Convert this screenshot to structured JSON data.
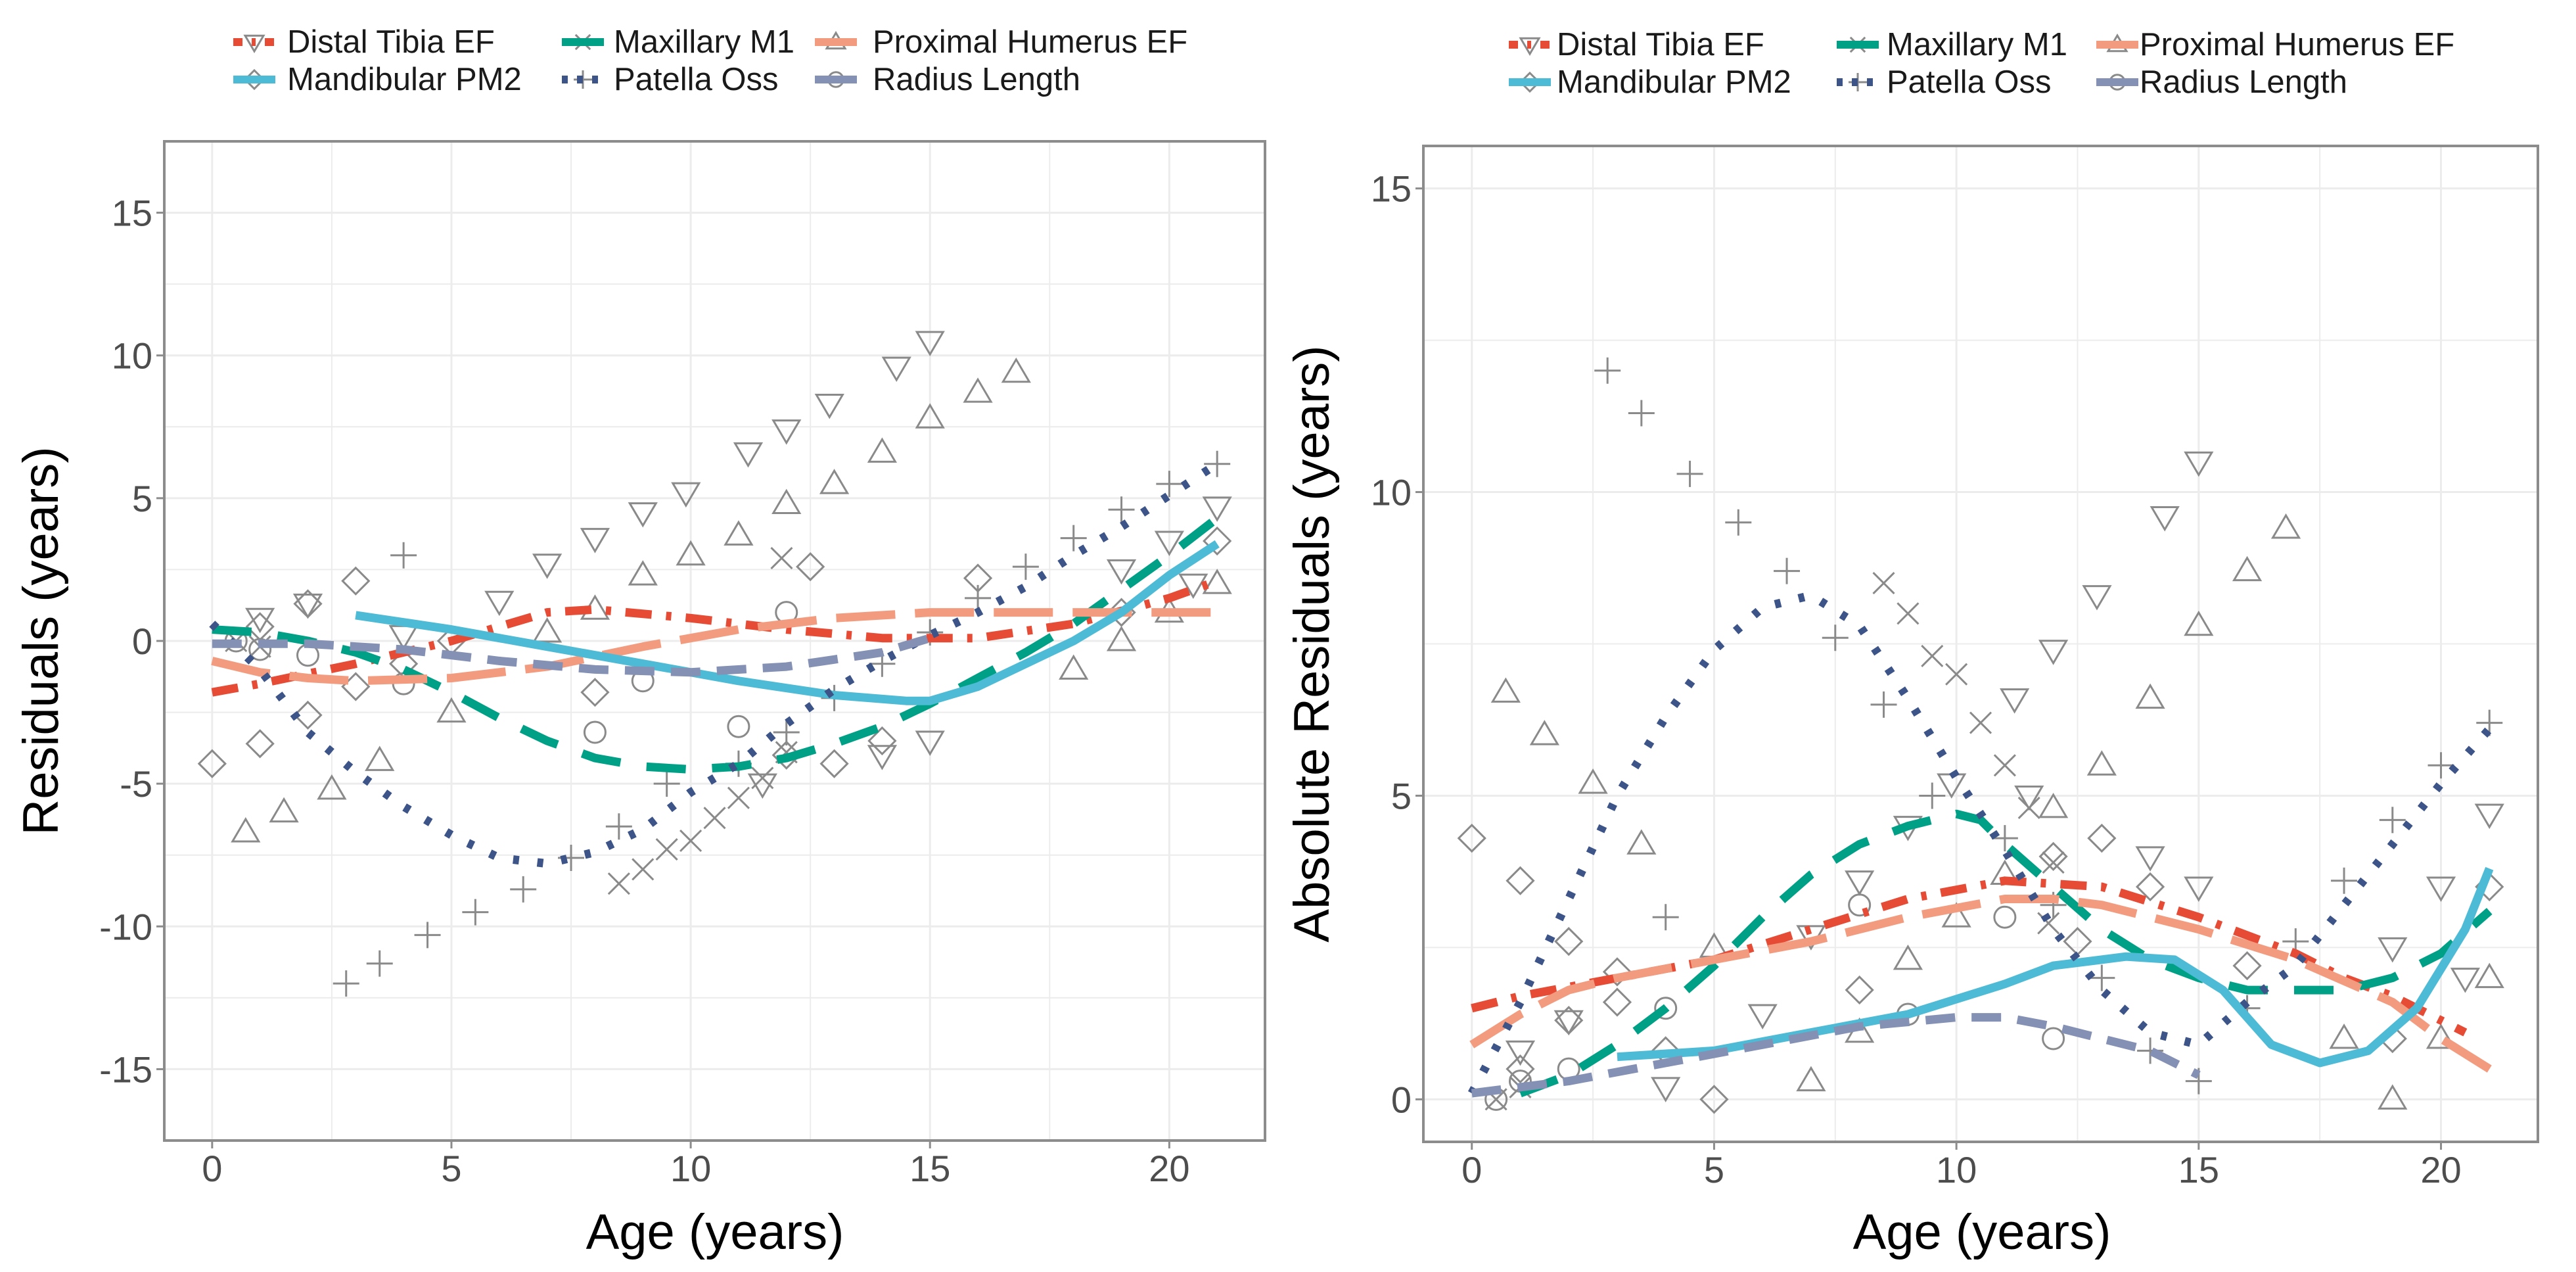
{
  "chart_data": [
    {
      "type": "line",
      "title": "",
      "xlabel": "Age (years)",
      "ylabel": "Residuals (years)",
      "xlim": [
        -1,
        22
      ],
      "ylim": [
        -17.5,
        17.5
      ],
      "xticks": [
        "0",
        "5",
        "10",
        "15",
        "20"
      ],
      "yticks": [
        "-15",
        "-10",
        "-5",
        "0",
        "5",
        "10",
        "15"
      ],
      "grid": true,
      "legend_position": "top",
      "legend": [
        "Distal Tibia EF",
        "Maxillary M1",
        "Proximal Humerus EF",
        "Mandibular PM2",
        "Patella Oss",
        "Radius Length"
      ],
      "series": [
        {
          "name": "Distal Tibia EF",
          "color": "#E64B35",
          "dash": "dotdash",
          "marker": "tri-down",
          "x": [
            0,
            1,
            3,
            5,
            7,
            8,
            10,
            12,
            14,
            16,
            18,
            20,
            21
          ],
          "y": [
            -1.8,
            -1.5,
            -0.8,
            0,
            1,
            1.1,
            0.8,
            0.4,
            0.1,
            0.1,
            0.6,
            1.5,
            2.1
          ]
        },
        {
          "name": "Maxillary M1",
          "color": "#00A087",
          "dash": "longdash",
          "marker": "cross",
          "x": [
            0,
            1,
            2,
            3,
            4,
            5,
            6,
            7,
            8,
            9,
            10,
            11,
            12,
            13,
            14,
            15,
            16,
            17,
            18,
            19,
            20,
            21
          ],
          "y": [
            0.4,
            0.3,
            0,
            -0.4,
            -1,
            -1.8,
            -2.7,
            -3.5,
            -4.1,
            -4.4,
            -4.5,
            -4.4,
            -4.1,
            -3.6,
            -3,
            -2.2,
            -1.3,
            -0.4,
            0.6,
            1.8,
            3,
            4.3
          ]
        },
        {
          "name": "Proximal Humerus EF",
          "color": "#F39B7F",
          "dash": "verylong",
          "marker": "tri-up",
          "x": [
            0,
            1,
            2,
            3,
            5,
            7,
            9,
            11,
            13,
            15,
            17,
            19,
            21
          ],
          "y": [
            -0.7,
            -1.1,
            -1.3,
            -1.4,
            -1.3,
            -0.9,
            -0.2,
            0.4,
            0.8,
            1,
            1,
            1,
            1
          ]
        },
        {
          "name": "Mandibular PM2",
          "color": "#4DBBD5",
          "dash": "solid",
          "marker": "diamond",
          "x": [
            3,
            5,
            7,
            9,
            11,
            13,
            14.5,
            15,
            16,
            18,
            19,
            20,
            21
          ],
          "y": [
            0.9,
            0.4,
            -0.2,
            -0.8,
            -1.4,
            -1.9,
            -2.1,
            -2.1,
            -1.6,
            0,
            1,
            2.3,
            3.4
          ]
        },
        {
          "name": "Patella Oss",
          "color": "#3C5488",
          "dash": "dotted",
          "marker": "plus",
          "x": [
            0,
            1,
            2,
            3,
            4,
            5,
            6,
            7,
            8,
            9,
            10,
            11,
            12,
            13,
            14,
            15,
            16,
            17,
            18,
            19,
            20,
            21
          ],
          "y": [
            0.6,
            -1,
            -3.2,
            -4.6,
            -5.8,
            -6.8,
            -7.6,
            -7.8,
            -7.4,
            -6.6,
            -5.3,
            -4.3,
            -2.9,
            -1.7,
            -0.7,
            0.2,
            1,
            1.9,
            3,
            4,
            5.1,
            6.2
          ]
        },
        {
          "name": "Radius Length",
          "color": "#8491B4",
          "dash": "dashed",
          "marker": "circle",
          "x": [
            0,
            2,
            4,
            6,
            8,
            10,
            12,
            14,
            15
          ],
          "y": [
            -0.1,
            -0.1,
            -0.3,
            -0.7,
            -1,
            -1.1,
            -0.9,
            -0.4,
            0.1
          ]
        }
      ],
      "scatter": [
        {
          "marker": "tri-down",
          "points": [
            [
              1,
              0.8
            ],
            [
              2,
              1.3
            ],
            [
              4,
              0.2
            ],
            [
              6,
              1.4
            ],
            [
              7,
              2.7
            ],
            [
              8,
              3.6
            ],
            [
              9,
              4.5
            ],
            [
              9.9,
              5.2
            ],
            [
              11.2,
              6.6
            ],
            [
              12,
              7.4
            ],
            [
              12.9,
              8.3
            ],
            [
              14.3,
              9.6
            ],
            [
              15,
              10.5
            ],
            [
              19,
              2.5
            ],
            [
              20,
              3.5
            ],
            [
              21,
              4.7
            ],
            [
              20.5,
              2
            ],
            [
              14,
              -4
            ],
            [
              15,
              -3.5
            ],
            [
              11.5,
              -5
            ]
          ]
        },
        {
          "marker": "tri-up",
          "points": [
            [
              0.7,
              -6.7
            ],
            [
              1.5,
              -6
            ],
            [
              2.5,
              -5.2
            ],
            [
              3.5,
              -4.2
            ],
            [
              5,
              -2.5
            ],
            [
              7,
              0.3
            ],
            [
              8,
              1.1
            ],
            [
              9,
              2.3
            ],
            [
              10,
              3
            ],
            [
              11,
              3.7
            ],
            [
              12,
              4.8
            ],
            [
              13,
              5.5
            ],
            [
              14,
              6.6
            ],
            [
              15,
              7.8
            ],
            [
              16,
              8.7
            ],
            [
              16.8,
              9.4
            ],
            [
              18,
              -1
            ],
            [
              19,
              0
            ],
            [
              20,
              1
            ],
            [
              21,
              2
            ]
          ]
        },
        {
          "marker": "diamond",
          "points": [
            [
              0,
              -4.3
            ],
            [
              1,
              -3.6
            ],
            [
              2,
              -2.6
            ],
            [
              3,
              -1.6
            ],
            [
              4,
              -0.8
            ],
            [
              5,
              0
            ],
            [
              3,
              2.1
            ],
            [
              2,
              1.3
            ],
            [
              1,
              0.5
            ],
            [
              12,
              -4
            ],
            [
              13,
              -4.3
            ],
            [
              14,
              -3.5
            ],
            [
              16,
              2.2
            ],
            [
              19,
              1
            ],
            [
              21,
              3.5
            ],
            [
              12.5,
              2.6
            ],
            [
              8,
              -1.8
            ]
          ]
        },
        {
          "marker": "plus",
          "points": [
            [
              2.8,
              -12
            ],
            [
              3.5,
              -11.3
            ],
            [
              4.5,
              -10.3
            ],
            [
              5.5,
              -9.5
            ],
            [
              6.5,
              -8.7
            ],
            [
              7.5,
              -7.6
            ],
            [
              8.5,
              -6.5
            ],
            [
              9.5,
              -5
            ],
            [
              11,
              -4.3
            ],
            [
              12,
              -3.2
            ],
            [
              13,
              -2
            ],
            [
              14,
              -0.8
            ],
            [
              15,
              0.3
            ],
            [
              16,
              1.5
            ],
            [
              17,
              2.6
            ],
            [
              18,
              3.6
            ],
            [
              19,
              4.6
            ],
            [
              20,
              5.5
            ],
            [
              21,
              6.2
            ],
            [
              4,
              3
            ]
          ]
        },
        {
          "marker": "cross",
          "points": [
            [
              8.5,
              -8.5
            ],
            [
              9,
              -8
            ],
            [
              9.5,
              -7.3
            ],
            [
              10,
              -7
            ],
            [
              10.5,
              -6.2
            ],
            [
              11,
              -5.5
            ],
            [
              11.5,
              -4.8
            ],
            [
              12,
              -3.9
            ],
            [
              11.9,
              2.9
            ],
            [
              0.5,
              0
            ],
            [
              1,
              -0.2
            ]
          ]
        },
        {
          "marker": "circle",
          "points": [
            [
              0.5,
              0
            ],
            [
              1,
              -0.3
            ],
            [
              2,
              -0.5
            ],
            [
              4,
              -1.5
            ],
            [
              8,
              -3.2
            ],
            [
              12,
              1
            ],
            [
              11,
              -3
            ],
            [
              9,
              -1.4
            ]
          ]
        }
      ]
    },
    {
      "type": "line",
      "title": "",
      "xlabel": "Age (years)",
      "ylabel": "Absolute Residuals (years)",
      "xlim": [
        -1,
        22
      ],
      "ylim": [
        -0.7,
        15.7
      ],
      "xticks": [
        "0",
        "5",
        "10",
        "15",
        "20"
      ],
      "yticks": [
        "0",
        "5",
        "10",
        "15"
      ],
      "grid": true,
      "legend_position": "top",
      "legend": [
        "Distal Tibia EF",
        "Maxillary M1",
        "Proximal Humerus EF",
        "Mandibular PM2",
        "Patella Oss",
        "Radius Length"
      ],
      "series": [
        {
          "name": "Distal Tibia EF",
          "color": "#E64B35",
          "dash": "dotdash",
          "marker": "tri-down",
          "x": [
            0,
            1,
            3,
            5,
            7,
            9,
            11,
            13,
            15,
            17,
            18,
            19,
            20,
            20.5
          ],
          "y": [
            1.5,
            1.7,
            2,
            2.3,
            2.8,
            3.3,
            3.6,
            3.5,
            3,
            2.4,
            2,
            1.7,
            1.3,
            1.1
          ]
        },
        {
          "name": "Maxillary M1",
          "color": "#00A087",
          "dash": "longdash",
          "marker": "cross",
          "x": [
            1,
            2,
            3,
            4,
            5,
            6,
            7,
            8,
            9,
            10,
            10.5,
            11,
            12,
            13,
            14,
            15,
            16,
            17,
            18,
            19,
            20,
            21
          ],
          "y": [
            0.1,
            0.4,
            0.9,
            1.5,
            2.2,
            3,
            3.7,
            4.2,
            4.5,
            4.7,
            4.6,
            4.2,
            3.5,
            2.8,
            2.3,
            2,
            1.8,
            1.8,
            1.8,
            2,
            2.4,
            3.1
          ]
        },
        {
          "name": "Proximal Humerus EF",
          "color": "#F39B7F",
          "dash": "verylong",
          "marker": "tri-up",
          "x": [
            0,
            1,
            2,
            3,
            5,
            7,
            9,
            11,
            12,
            13,
            14,
            15,
            17,
            19,
            20,
            21
          ],
          "y": [
            0.9,
            1.4,
            1.8,
            2,
            2.3,
            2.6,
            3,
            3.3,
            3.3,
            3.2,
            3,
            2.8,
            2.3,
            1.6,
            1,
            0.5
          ]
        },
        {
          "name": "Mandibular PM2",
          "color": "#4DBBD5",
          "dash": "solid",
          "marker": "diamond",
          "x": [
            3,
            5,
            7,
            9,
            11,
            12,
            13.5,
            14.5,
            15.5,
            16.5,
            17.5,
            18.5,
            19.5,
            20.5,
            21
          ],
          "y": [
            0.7,
            0.8,
            1.1,
            1.4,
            1.9,
            2.2,
            2.35,
            2.3,
            1.8,
            0.9,
            0.6,
            0.8,
            1.5,
            2.8,
            3.8
          ]
        },
        {
          "name": "Patella Oss",
          "color": "#3C5488",
          "dash": "dotted",
          "marker": "plus",
          "x": [
            0,
            1,
            2,
            3,
            4,
            5,
            6,
            7,
            8,
            9,
            10,
            11,
            12,
            13,
            14,
            15,
            16,
            17,
            18,
            19,
            20,
            21
          ],
          "y": [
            0.1,
            1.6,
            3.3,
            5,
            6.3,
            7.4,
            8.1,
            8.3,
            7.8,
            6.6,
            5.3,
            4.1,
            2.8,
            1.8,
            1.1,
            0.9,
            1.6,
            2.2,
            3.2,
            4.2,
            5.2,
            6.1
          ]
        },
        {
          "name": "Radius Length",
          "color": "#8491B4",
          "dash": "dashed",
          "marker": "circle",
          "x": [
            0,
            2,
            4,
            6,
            8,
            10,
            11,
            12,
            13,
            14,
            15
          ],
          "y": [
            0.1,
            0.3,
            0.6,
            0.9,
            1.2,
            1.35,
            1.35,
            1.2,
            1,
            0.8,
            0.4
          ]
        }
      ],
      "scatter_rule": "absolute value of left panel points"
    }
  ]
}
